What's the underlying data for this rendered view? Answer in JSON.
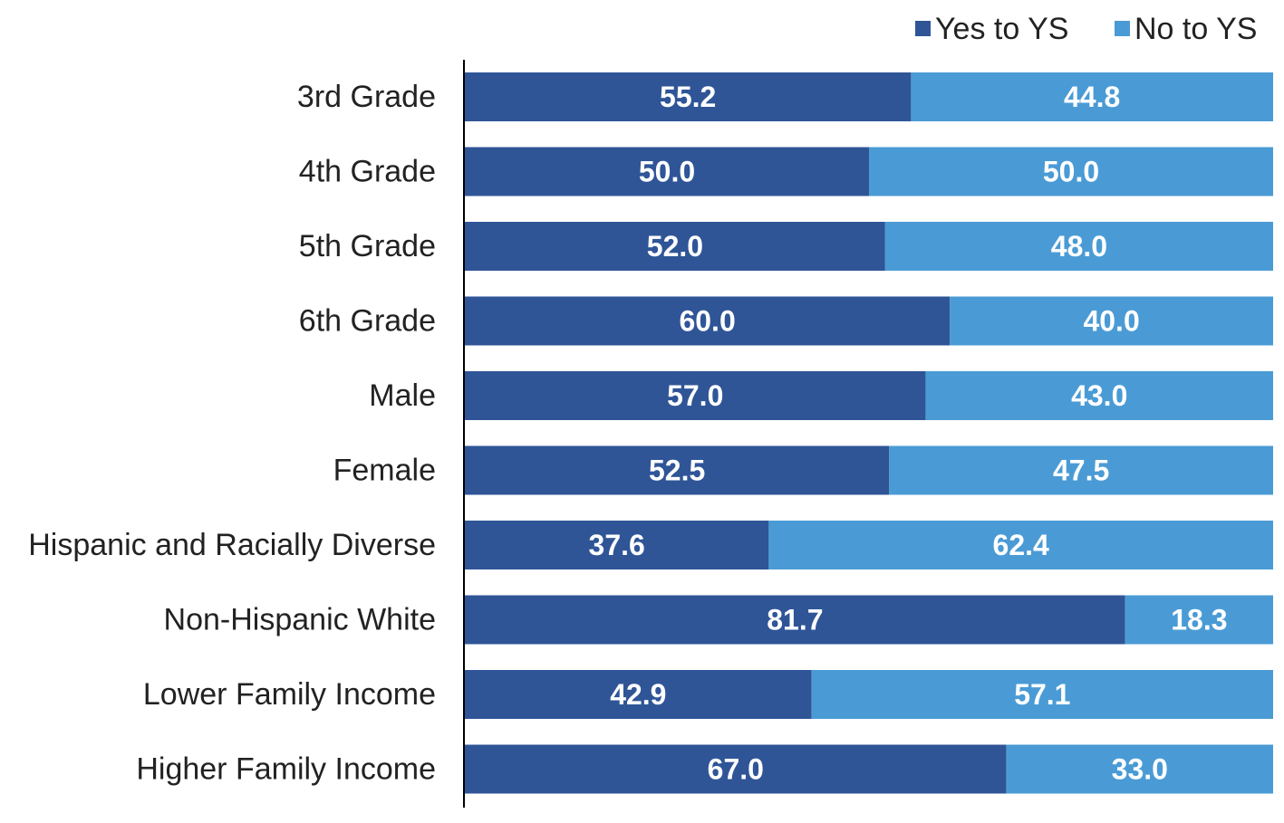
{
  "chart_data": {
    "type": "bar",
    "orientation": "horizontal",
    "stacked": "percent",
    "title": "",
    "xlabel": "",
    "ylabel": "",
    "xlim": [
      0,
      100
    ],
    "grid": false,
    "legend_position": "top-right",
    "categories": [
      "3rd Grade",
      "4th Grade",
      "5th Grade",
      "6th Grade",
      "Male",
      "Female",
      "Hispanic and Racially Diverse",
      "Non-Hispanic White",
      "Lower Family Income",
      "Higher Family Income"
    ],
    "series": [
      {
        "name": "Yes to YS",
        "color": "#2F5597",
        "values": [
          55.2,
          50.0,
          52.0,
          60.0,
          57.0,
          52.5,
          37.6,
          81.7,
          42.9,
          67.0
        ],
        "labels": [
          "55.2",
          "50.0",
          "52.0",
          "60.0",
          "57.0",
          "52.5",
          "37.6",
          "81.7",
          "42.9",
          "67.0"
        ]
      },
      {
        "name": "No to YS",
        "color": "#4A9BD5",
        "values": [
          44.8,
          50.0,
          48.0,
          40.0,
          43.0,
          47.5,
          62.4,
          18.3,
          57.1,
          33.0
        ],
        "labels": [
          "44.8",
          "50.0",
          "48.0",
          "40.0",
          "43.0",
          "47.5",
          "62.4",
          "18.3",
          "57.1",
          "33.0"
        ]
      }
    ]
  }
}
